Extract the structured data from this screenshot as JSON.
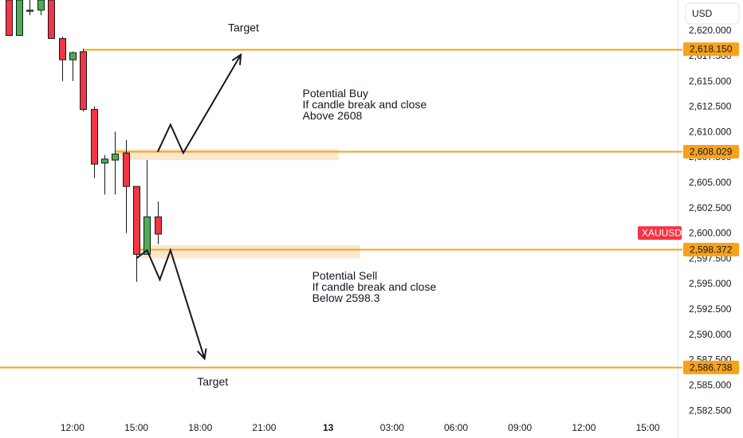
{
  "currency_label": "USD",
  "symbol_label": "XAUUSD",
  "colors": {
    "up": "#4caf50",
    "down": "#f23645",
    "level": "#f7a21b",
    "zone": "#fde4c4",
    "symbol_bg": "#f23645",
    "text": "#131722",
    "border": "#e0e3eb"
  },
  "chart_data": {
    "type": "candlestick",
    "x_ticks": [
      {
        "label": "12:00",
        "t": 0
      },
      {
        "label": "15:00",
        "t": 3
      },
      {
        "label": "18:00",
        "t": 6
      },
      {
        "label": "21:00",
        "t": 9
      },
      {
        "label": "13",
        "t": 12,
        "bold": true
      },
      {
        "label": "03:00",
        "t": 15
      },
      {
        "label": "06:00",
        "t": 18
      },
      {
        "label": "09:00",
        "t": 21
      },
      {
        "label": "12:00",
        "t": 24
      },
      {
        "label": "15:00",
        "t": 27
      }
    ],
    "y_ticks": [
      "2,620.000",
      "2,617.500",
      "2,615.000",
      "2,612.500",
      "2,610.000",
      "2,607.500",
      "2,605.000",
      "2,602.500",
      "2,600.000",
      "2,597.500",
      "2,595.000",
      "2,592.500",
      "2,590.000",
      "2,587.500",
      "2,585.000",
      "2,582.500"
    ],
    "y_tick_values": [
      2620,
      2617.5,
      2615,
      2612.5,
      2610,
      2607.5,
      2605,
      2602.5,
      2600,
      2597.5,
      2595,
      2592.5,
      2590,
      2587.5,
      2585,
      2582.5
    ],
    "ylim": [
      2581.5,
      2623.0
    ],
    "xlim": [
      -3.4,
      28.4
    ],
    "candles": [
      {
        "t": -3.0,
        "o": 2623.0,
        "h": 2623.5,
        "l": 2619.5,
        "c": 2619.5
      },
      {
        "t": -2.5,
        "o": 2619.5,
        "h": 2623.0,
        "l": 2619.5,
        "c": 2623.0
      },
      {
        "t": -2.0,
        "o": 2622.0,
        "h": 2623.5,
        "l": 2621.5,
        "c": 2622.0
      },
      {
        "t": -1.5,
        "o": 2622.0,
        "h": 2623.5,
        "l": 2621.5,
        "c": 2623.0
      },
      {
        "t": -1.0,
        "o": 2623.0,
        "h": 2623.5,
        "l": 2619.2,
        "c": 2619.2
      },
      {
        "t": -0.5,
        "o": 2619.2,
        "h": 2619.4,
        "l": 2615.0,
        "c": 2617.1
      },
      {
        "t": 0.0,
        "o": 2617.1,
        "h": 2617.9,
        "l": 2615.0,
        "c": 2617.8
      },
      {
        "t": 0.5,
        "o": 2617.9,
        "h": 2618.2,
        "l": 2612.0,
        "c": 2612.2
      },
      {
        "t": 1.0,
        "o": 2612.2,
        "h": 2612.5,
        "l": 2605.4,
        "c": 2606.8
      },
      {
        "t": 1.5,
        "o": 2606.9,
        "h": 2607.7,
        "l": 2603.8,
        "c": 2607.3
      },
      {
        "t": 2.0,
        "o": 2607.2,
        "h": 2610.0,
        "l": 2603.8,
        "c": 2607.8
      },
      {
        "t": 2.5,
        "o": 2607.9,
        "h": 2609.2,
        "l": 2600.0,
        "c": 2604.6
      },
      {
        "t": 3.0,
        "o": 2604.6,
        "h": 2604.6,
        "l": 2595.2,
        "c": 2597.9
      },
      {
        "t": 3.5,
        "o": 2597.9,
        "h": 2607.2,
        "l": 2597.9,
        "c": 2601.6
      },
      {
        "t": 4.0,
        "o": 2601.6,
        "h": 2603.1,
        "l": 2598.9,
        "c": 2599.9
      }
    ],
    "levels": [
      {
        "value": 2618.15,
        "label": "2,618.150",
        "line_from_t": 0.5
      },
      {
        "value": 2608.029,
        "label": "2,608.029",
        "line_from_t": 2.0
      },
      {
        "value": 2598.372,
        "label": "2,598.372",
        "line_from_t": 3.0
      },
      {
        "value": 2586.738,
        "label": "2,586.738",
        "line_from_t": -3.4
      }
    ],
    "zones": [
      {
        "t_from": 2.0,
        "t_to": 12.5,
        "y_from": 2607.2,
        "y_to": 2608.3
      },
      {
        "t_from": 3.0,
        "t_to": 13.5,
        "y_from": 2597.5,
        "y_to": 2598.8
      }
    ],
    "current_price": 2600.0,
    "paths": [
      {
        "points": [
          [
            4.0,
            2608.0
          ],
          [
            4.6,
            2610.7
          ],
          [
            5.2,
            2607.9
          ],
          [
            7.9,
            2617.6
          ]
        ],
        "arrow": true
      },
      {
        "points": [
          [
            3.0,
            2597.5
          ],
          [
            3.5,
            2598.3
          ],
          [
            4.1,
            2595.4
          ],
          [
            4.6,
            2598.3
          ],
          [
            6.2,
            2587.6
          ]
        ],
        "arrow": true
      }
    ],
    "annotations": [
      {
        "lines": [
          "Target"
        ],
        "t": 7.3,
        "y": 2619.9
      },
      {
        "lines": [
          "Potential Buy",
          "If candle break and close",
          "Above 2608"
        ],
        "t": 10.8,
        "y": 2613.4
      },
      {
        "lines": [
          "Potential Sell",
          "If candle break and close",
          "Below 2598.3"
        ],
        "t": 11.25,
        "y": 2595.4
      },
      {
        "lines": [
          "Target"
        ],
        "t": 5.85,
        "y": 2584.95
      }
    ]
  }
}
